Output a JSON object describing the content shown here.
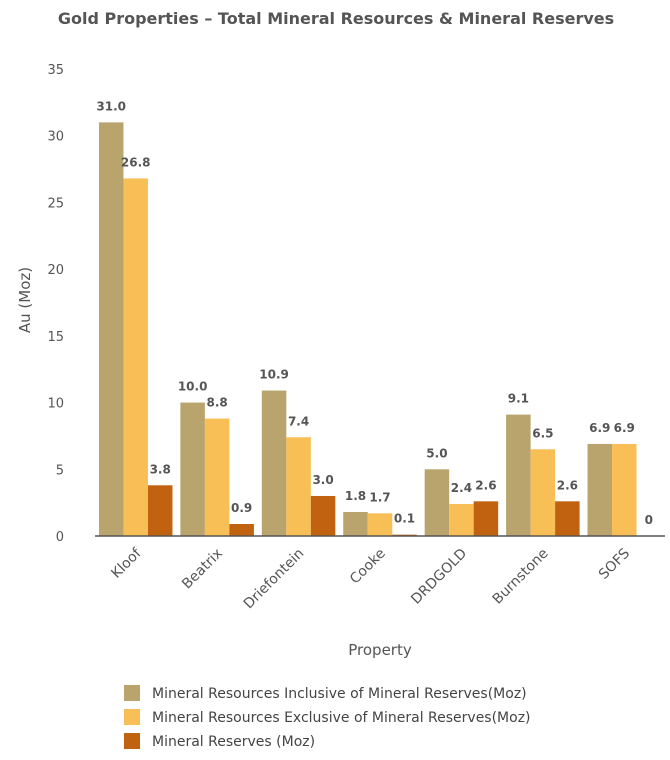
{
  "chart_data": {
    "type": "bar",
    "title": "Gold Properties – Total Mineral Resources & Mineral Reserves",
    "xlabel": "Property",
    "ylabel": "Au (Moz)",
    "ylim": [
      0,
      35
    ],
    "yticks": [
      0,
      5,
      10,
      15,
      20,
      25,
      30,
      35
    ],
    "categories": [
      "Kloof",
      "Beatrix",
      "Driefontein",
      "Cooke",
      "DRDGOLD",
      "Burnstone",
      "SOFS"
    ],
    "series": [
      {
        "name": "Mineral Resources Inclusive of Mineral Reserves(Moz)",
        "color": "#B9A46E",
        "values": [
          31.0,
          10.0,
          10.9,
          1.8,
          5.0,
          9.1,
          6.9
        ],
        "labels": [
          "31.0",
          "10.0",
          "10.9",
          "1.8",
          "5.0",
          "9.1",
          "6.9"
        ]
      },
      {
        "name": "Mineral Resources Exclusive of Mineral Reserves(Moz)",
        "color": "#F8BF57",
        "values": [
          26.8,
          8.8,
          7.4,
          1.7,
          2.4,
          6.5,
          6.9
        ],
        "labels": [
          "26.8",
          "8.8",
          "7.4",
          "1.7",
          "2.4",
          "6.5",
          "6.9"
        ]
      },
      {
        "name": "Mineral Reserves (Moz)",
        "color": "#C0620F",
        "values": [
          3.8,
          0.9,
          3.0,
          0.1,
          2.6,
          2.6,
          0
        ],
        "labels": [
          "3.8",
          "0.9",
          "3.0",
          "0.1",
          "2.6",
          "2.6",
          "0"
        ]
      }
    ],
    "legend_position": "bottom",
    "grid": false
  }
}
